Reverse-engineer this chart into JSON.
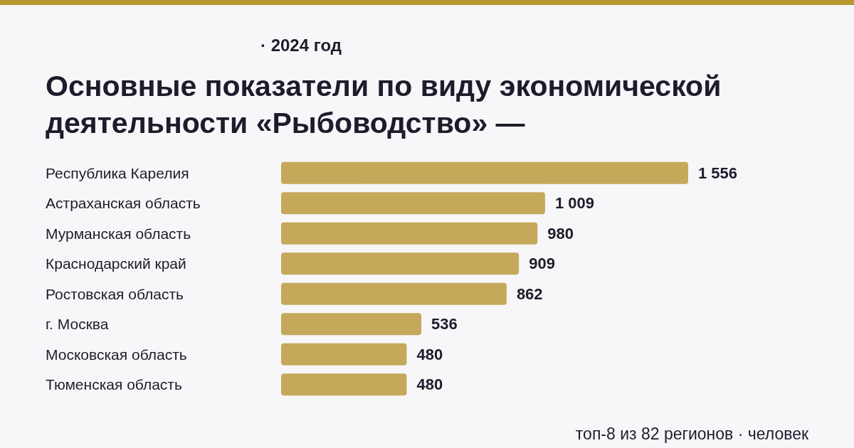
{
  "chart_data": {
    "type": "bar",
    "orientation": "horizontal",
    "subtitle": "· 2024 год",
    "title": "Основные показатели по виду экономической деятельности «Рыбоводство» —",
    "categories": [
      "Республика Карелия",
      "Астраханская область",
      "Мурманская область",
      "Краснодарский край",
      "Ростовская область",
      "г. Москва",
      "Московская область",
      "Тюменская область"
    ],
    "values": [
      1556,
      1009,
      980,
      909,
      862,
      536,
      480,
      480
    ],
    "value_labels": [
      "1 556",
      "1 009",
      "980",
      "909",
      "862",
      "536",
      "480",
      "480"
    ],
    "color": "#c5a85a",
    "annotations": [
      "топ-8 из 82 регионов · человек"
    ]
  }
}
